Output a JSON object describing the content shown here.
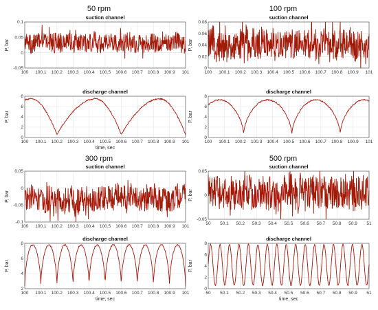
{
  "figure": {
    "groups": [
      {
        "title": "50 rpm"
      },
      {
        "title": "100 rpm"
      },
      {
        "title": "300 rpm"
      },
      {
        "title": "500 rpm"
      }
    ]
  },
  "colors": {
    "signal": "#cc1111",
    "signal_dark": "#6b2a00",
    "grid": "#e3e3e3",
    "axis": "#444444"
  },
  "chart_data": [
    {
      "type": "line",
      "group": "50 rpm",
      "title": "suction channel",
      "xlabel": "",
      "ylabel": "P, bar",
      "xlim": [
        100,
        101
      ],
      "ylim": [
        -0.05,
        0.1
      ],
      "xticks": [
        "100",
        "100.1",
        "100.2",
        "100.3",
        "100.4",
        "100.5",
        "100.6",
        "100.7",
        "100.8",
        "100.9",
        "101"
      ],
      "yticks": [
        "-0.05",
        "0",
        "0.05",
        "0.1"
      ],
      "grid": true,
      "series": [
        {
          "x": [
            100,
            101
          ],
          "y_mean": 0.035,
          "y_band": [
            0.0,
            0.08
          ],
          "pattern": "noise"
        }
      ]
    },
    {
      "type": "line",
      "group": "50 rpm",
      "title": "discharge channel",
      "xlabel": "time, sec",
      "ylabel": "P, bar",
      "xlim": [
        100,
        101
      ],
      "ylim": [
        0,
        8
      ],
      "xticks": [
        "100",
        "100.1",
        "100.2",
        "100.3",
        "100.4",
        "100.5",
        "100.6",
        "100.7",
        "100.8",
        "100.9",
        "101"
      ],
      "yticks": [
        "0",
        "2",
        "4",
        "6",
        "8"
      ],
      "grid": true,
      "series": [
        {
          "x": [
            100,
            101
          ],
          "y_min": 0.5,
          "y_max": 7.5,
          "period": 0.4,
          "pattern": "sawtooth-peak",
          "troughs_at": [
            100.2,
            100.6
          ]
        }
      ]
    },
    {
      "type": "line",
      "group": "100 rpm",
      "title": "suction channel",
      "xlabel": "",
      "ylabel": "P, bar",
      "xlim": [
        100,
        101
      ],
      "ylim": [
        0,
        0.08
      ],
      "xticks": [
        "100",
        "100.1",
        "100.2",
        "100.3",
        "100.4",
        "100.5",
        "100.6",
        "100.7",
        "100.8",
        "100.9",
        "101"
      ],
      "yticks": [
        "0",
        "0.02",
        "0.04",
        "0.06",
        "0.08"
      ],
      "grid": true,
      "series": [
        {
          "x": [
            100,
            101
          ],
          "y_mean": 0.04,
          "y_band": [
            0.01,
            0.08
          ],
          "pattern": "noise"
        }
      ]
    },
    {
      "type": "line",
      "group": "100 rpm",
      "title": "discharge channel",
      "xlabel": "",
      "ylabel": "P, bar",
      "xlim": [
        100,
        101
      ],
      "ylim": [
        0,
        8
      ],
      "xticks": [
        "100",
        "100.1",
        "100.2",
        "100.3",
        "100.4",
        "100.5",
        "100.6",
        "100.7",
        "100.8",
        "100.9",
        "101"
      ],
      "yticks": [
        "0",
        "2",
        "4",
        "6",
        "8"
      ],
      "grid": true,
      "series": [
        {
          "x": [
            100,
            101
          ],
          "y_min": 0.5,
          "y_max": 7.3,
          "period": 0.3,
          "pattern": "arch",
          "troughs_at": [
            100.22,
            100.52,
            100.82
          ]
        }
      ]
    },
    {
      "type": "line",
      "group": "300 rpm",
      "title": "suction channel",
      "xlabel": "",
      "ylabel": "P, bar",
      "xlim": [
        100,
        101
      ],
      "ylim": [
        -0.1,
        0.05
      ],
      "xticks": [
        "100",
        "100.1",
        "100.2",
        "100.3",
        "100.4",
        "100.5",
        "100.6",
        "100.7",
        "100.8",
        "100.9",
        "101"
      ],
      "yticks": [
        "-0.1",
        "-0.05",
        "0",
        "0.05"
      ],
      "grid": true,
      "series": [
        {
          "x": [
            100,
            101
          ],
          "y_mean": -0.03,
          "y_band": [
            -0.08,
            0.02
          ],
          "pattern": "noise"
        }
      ]
    },
    {
      "type": "line",
      "group": "300 rpm",
      "title": "discharge channel",
      "xlabel": "time, sec",
      "ylabel": "P, bar",
      "xlim": [
        100,
        101
      ],
      "ylim": [
        2,
        8
      ],
      "xticks": [
        "100",
        "100.1",
        "100.2",
        "100.3",
        "100.4",
        "100.5",
        "100.6",
        "100.7",
        "100.8",
        "100.9",
        "101"
      ],
      "yticks": [
        "2",
        "4",
        "6",
        "8"
      ],
      "grid": true,
      "series": [
        {
          "x": [
            100,
            101
          ],
          "y_min": 2.3,
          "y_max": 7.8,
          "period": 0.1,
          "pattern": "arch"
        }
      ]
    },
    {
      "type": "line",
      "group": "500 rpm",
      "title": "suction channel",
      "xlabel": "",
      "ylabel": "P, bar",
      "xlim": [
        50,
        51
      ],
      "ylim": [
        -0.05,
        0.05
      ],
      "xticks": [
        "50",
        "50.1",
        "50.2",
        "50.3",
        "50.4",
        "50.5",
        "50.6",
        "50.7",
        "50.8",
        "50.9",
        "51"
      ],
      "yticks": [
        "-0.05",
        "0",
        "0.05"
      ],
      "grid": true,
      "series": [
        {
          "x": [
            50,
            51
          ],
          "y_mean": 0.005,
          "y_band": [
            -0.04,
            0.05
          ],
          "pattern": "noise"
        }
      ]
    },
    {
      "type": "line",
      "group": "500 rpm",
      "title": "discharge channel",
      "xlabel": "time, sec",
      "ylabel": "P, bar",
      "xlim": [
        50,
        51
      ],
      "ylim": [
        0,
        8
      ],
      "xticks": [
        "50",
        "50.1",
        "50.2",
        "50.3",
        "50.4",
        "50.5",
        "50.6",
        "50.7",
        "50.8",
        "50.9",
        "51"
      ],
      "yticks": [
        "0",
        "2",
        "4",
        "6",
        "8"
      ],
      "grid": true,
      "series": [
        {
          "x": [
            50,
            51
          ],
          "y_min": 0.6,
          "y_max": 7.8,
          "period": 0.0588,
          "pattern": "sine"
        }
      ]
    }
  ]
}
